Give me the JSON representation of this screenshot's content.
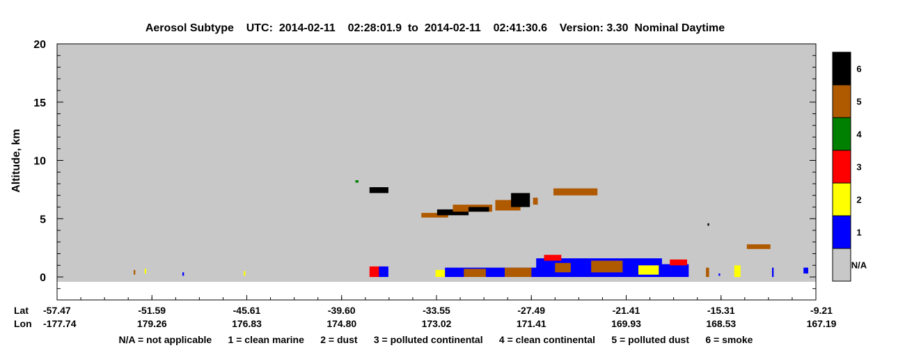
{
  "chart_data": {
    "type": "heatmap",
    "title": "Aerosol Subtype    UTC:  2014-02-11    02:28:01.9  to  2014-02-11    02:41:30.6    Version: 3.30  Nominal Daytime",
    "ylabel": "Altitude, km",
    "ylim": [
      -0.6,
      20
    ],
    "yticks": [
      "0",
      "5",
      "10",
      "15",
      "20"
    ],
    "x_row_labels": [
      "Lat",
      "Lon"
    ],
    "x_ticks": [
      {
        "lat": "-57.47",
        "lon": "-177.74"
      },
      {
        "lat": "-51.59",
        "lon": "179.26"
      },
      {
        "lat": "-45.61",
        "lon": "176.83"
      },
      {
        "lat": "-39.60",
        "lon": "174.80"
      },
      {
        "lat": "-33.55",
        "lon": "173.02"
      },
      {
        "lat": "-27.49",
        "lon": "171.41"
      },
      {
        "lat": "-21.41",
        "lon": "169.93"
      },
      {
        "lat": "-15.31",
        "lon": "168.53"
      },
      {
        "lat": "-9.21",
        "lon": "167.19"
      }
    ],
    "lat_range": [
      -57.47,
      -9.21
    ],
    "background_class": "N/A",
    "colorbar": [
      {
        "label": "N/A",
        "color": "#c8c8c8"
      },
      {
        "label": "1",
        "color": "#0000ff"
      },
      {
        "label": "2",
        "color": "#ffff00"
      },
      {
        "label": "3",
        "color": "#ff0000"
      },
      {
        "label": "4",
        "color": "#008000"
      },
      {
        "label": "5",
        "color": "#b05a00"
      },
      {
        "label": "6",
        "color": "#000000"
      }
    ],
    "legend_text": "N/A = not applicable      1 = clean marine      2 = dust      3 = polluted continental      4 = clean continental      5 = polluted dust      6 = smoke",
    "features": [
      {
        "lat": [
          -52.6,
          -52.5
        ],
        "alt": [
          0.2,
          0.6
        ],
        "class": 5
      },
      {
        "lat": [
          -51.9,
          -51.8
        ],
        "alt": [
          0.3,
          0.7
        ],
        "class": 2
      },
      {
        "lat": [
          -49.5,
          -49.4
        ],
        "alt": [
          0.1,
          0.4
        ],
        "class": 1
      },
      {
        "lat": [
          -45.6,
          -45.5
        ],
        "alt": [
          0.1,
          0.5
        ],
        "class": 2
      },
      {
        "lat": [
          -38.5,
          -38.3
        ],
        "alt": [
          8.1,
          8.3
        ],
        "class": 4
      },
      {
        "lat": [
          -37.6,
          -36.4
        ],
        "alt": [
          7.2,
          7.7
        ],
        "class": 6
      },
      {
        "lat": [
          -37.6,
          -36.6
        ],
        "alt": [
          0.0,
          0.9
        ],
        "class": 3
      },
      {
        "lat": [
          -37.0,
          -36.4
        ],
        "alt": [
          0.0,
          0.9
        ],
        "class": 1
      },
      {
        "lat": [
          -34.3,
          -32.6
        ],
        "alt": [
          5.1,
          5.5
        ],
        "class": 5
      },
      {
        "lat": [
          -33.3,
          -31.3
        ],
        "alt": [
          5.3,
          5.8
        ],
        "class": 6
      },
      {
        "lat": [
          -32.3,
          -29.8
        ],
        "alt": [
          5.6,
          6.2
        ],
        "class": 5
      },
      {
        "lat": [
          -31.3,
          -30.0
        ],
        "alt": [
          5.6,
          6.0
        ],
        "class": 6
      },
      {
        "lat": [
          -29.6,
          -28.0
        ],
        "alt": [
          5.7,
          6.6
        ],
        "class": 5
      },
      {
        "lat": [
          -28.6,
          -27.4
        ],
        "alt": [
          6.0,
          7.2
        ],
        "class": 6
      },
      {
        "lat": [
          -27.2,
          -26.9
        ],
        "alt": [
          6.2,
          6.8
        ],
        "class": 5
      },
      {
        "lat": [
          -25.9,
          -23.1
        ],
        "alt": [
          7.0,
          7.6
        ],
        "class": 5
      },
      {
        "lat": [
          -16.1,
          -16.0
        ],
        "alt": [
          4.4,
          4.6
        ],
        "class": 6
      },
      {
        "lat": [
          -13.6,
          -12.1
        ],
        "alt": [
          2.4,
          2.8
        ],
        "class": 5
      },
      {
        "lat": [
          -33.4,
          -32.5
        ],
        "alt": [
          0.0,
          0.6
        ],
        "class": 2
      },
      {
        "lat": [
          -32.8,
          -20.0
        ],
        "alt": [
          0.0,
          0.8
        ],
        "class": 1
      },
      {
        "lat": [
          -31.6,
          -30.2
        ],
        "alt": [
          0.0,
          0.7
        ],
        "class": 5
      },
      {
        "lat": [
          -29.0,
          -27.3
        ],
        "alt": [
          0.0,
          0.8
        ],
        "class": 5
      },
      {
        "lat": [
          -27.0,
          -19.0
        ],
        "alt": [
          0.0,
          1.6
        ],
        "class": 1
      },
      {
        "lat": [
          -25.8,
          -24.8
        ],
        "alt": [
          0.4,
          1.2
        ],
        "class": 5
      },
      {
        "lat": [
          -23.5,
          -21.5
        ],
        "alt": [
          0.4,
          1.4
        ],
        "class": 5
      },
      {
        "lat": [
          -26.5,
          -25.4
        ],
        "alt": [
          1.4,
          1.9
        ],
        "class": 3
      },
      {
        "lat": [
          -20.5,
          -19.2
        ],
        "alt": [
          0.2,
          1.0
        ],
        "class": 2
      },
      {
        "lat": [
          -19.2,
          -17.3
        ],
        "alt": [
          0.0,
          1.1
        ],
        "class": 1
      },
      {
        "lat": [
          -18.5,
          -17.4
        ],
        "alt": [
          1.0,
          1.5
        ],
        "class": 3
      },
      {
        "lat": [
          -16.2,
          -16.0
        ],
        "alt": [
          0.0,
          0.8
        ],
        "class": 5
      },
      {
        "lat": [
          -15.4,
          -15.3
        ],
        "alt": [
          0.1,
          0.3
        ],
        "class": 1
      },
      {
        "lat": [
          -14.4,
          -14.0
        ],
        "alt": [
          0.0,
          1.0
        ],
        "class": 2
      },
      {
        "lat": [
          -12.0,
          -11.9
        ],
        "alt": [
          0.0,
          0.8
        ],
        "class": 1
      },
      {
        "lat": [
          -10.0,
          -9.7
        ],
        "alt": [
          0.3,
          0.8
        ],
        "class": 1
      }
    ]
  }
}
